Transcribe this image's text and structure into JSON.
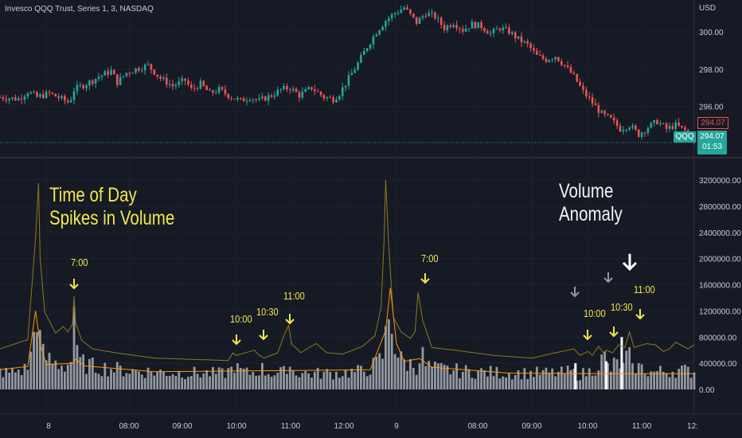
{
  "title": "Invesco QQQ Trust, Series 1, 3, NASDAQ",
  "currency": "USD",
  "price_axis": {
    "labels": [
      "300.00",
      "298.00",
      "296.00"
    ]
  },
  "volume_axis": {
    "labels": [
      "3200000.00",
      "2800000.00",
      "2400000.00",
      "2000000.00",
      "1600000.00",
      "1200000.00",
      "800000.00",
      "400000.00",
      "0.00"
    ]
  },
  "time_axis": {
    "labels": [
      "8",
      "08:00",
      "09:00",
      "10:00",
      "11:00",
      "12:00",
      "9",
      "08:00",
      "09:00",
      "10:00",
      "11:00",
      "12:"
    ]
  },
  "price_tags": {
    "last_price_red": "294.07",
    "symbol": "QQQ",
    "last_price": "294.07",
    "countdown": "01:53"
  },
  "annotations": {
    "headline_left_line1": "Time of Day",
    "headline_left_line2": "Spikes in Volume",
    "headline_right_line1": "Volume",
    "headline_right_line2": "Anomaly",
    "t700_a": "7:00",
    "t1000_a": "10:00",
    "t1030_a": "10:30",
    "t1100_a": "11:00",
    "t700_b": "7:00",
    "t1000_b": "10:00",
    "t1030_b": "10:30",
    "t1100_b": "11:00"
  },
  "colors": {
    "background": "#161a25",
    "up": "#26a69a",
    "down": "#ef5350",
    "volume_bar": "#9598a1",
    "volume_avg": "#ff9800",
    "volume_upper": "#8c7a1e",
    "annotation": "#f2e84b"
  },
  "chart_data": [
    {
      "type": "candlestick",
      "y_unit": "USD",
      "ylim": [
        293.3,
        301.7
      ],
      "close_path": [
        [
          0,
          296.5
        ],
        [
          12,
          296.4
        ],
        [
          18,
          296.8
        ],
        [
          24,
          296.5
        ],
        [
          32,
          296.7
        ],
        [
          40,
          296.4
        ],
        [
          45,
          296.2
        ],
        [
          48,
          296.9
        ],
        [
          58,
          297.3
        ],
        [
          64,
          297.6
        ],
        [
          72,
          297.9
        ],
        [
          76,
          297.3
        ],
        [
          82,
          297.8
        ],
        [
          88,
          298.0
        ],
        [
          96,
          298.2
        ],
        [
          104,
          297.5
        ],
        [
          112,
          297.1
        ],
        [
          120,
          297.4
        ],
        [
          124,
          296.9
        ],
        [
          130,
          297.2
        ],
        [
          136,
          296.7
        ],
        [
          142,
          296.9
        ],
        [
          150,
          296.5
        ],
        [
          156,
          296.3
        ],
        [
          162,
          296.5
        ],
        [
          168,
          296.3
        ],
        [
          176,
          296.6
        ],
        [
          182,
          296.9
        ],
        [
          188,
          297.0
        ],
        [
          194,
          296.6
        ],
        [
          202,
          297.0
        ],
        [
          210,
          296.5
        ],
        [
          216,
          296.4
        ],
        [
          220,
          296.7
        ],
        [
          226,
          297.5
        ],
        [
          232,
          298.3
        ],
        [
          238,
          299.2
        ],
        [
          244,
          300.0
        ],
        [
          250,
          300.6
        ],
        [
          256,
          301.0
        ],
        [
          262,
          301.3
        ],
        [
          266,
          300.9
        ],
        [
          270,
          300.5
        ],
        [
          276,
          301.0
        ],
        [
          282,
          300.8
        ],
        [
          288,
          300.2
        ],
        [
          294,
          300.5
        ],
        [
          300,
          300.1
        ],
        [
          306,
          300.4
        ],
        [
          312,
          300.3
        ],
        [
          318,
          299.9
        ],
        [
          324,
          300.2
        ],
        [
          330,
          300.0
        ],
        [
          336,
          299.6
        ],
        [
          342,
          299.3
        ],
        [
          348,
          298.7
        ],
        [
          354,
          298.5
        ],
        [
          360,
          298.7
        ],
        [
          366,
          298.2
        ],
        [
          372,
          297.6
        ],
        [
          378,
          296.8
        ],
        [
          384,
          296.2
        ],
        [
          390,
          295.6
        ],
        [
          396,
          295.3
        ],
        [
          402,
          294.8
        ],
        [
          408,
          295.0
        ],
        [
          414,
          294.5
        ],
        [
          420,
          294.9
        ],
        [
          426,
          295.2
        ],
        [
          432,
          294.8
        ],
        [
          438,
          295.0
        ],
        [
          444,
          294.7
        ],
        [
          449,
          294.3
        ],
        [
          450,
          294.07
        ]
      ],
      "last": 294.07
    },
    {
      "type": "bar",
      "y_unit": "shares",
      "ylim": [
        0,
        3400000
      ],
      "series": [],
      "volume_profile": [
        [
          0,
          300000
        ],
        [
          5,
          270000
        ],
        [
          10,
          300000
        ],
        [
          16,
          330000
        ],
        [
          19,
          420000
        ],
        [
          21,
          650000
        ],
        [
          23,
          1200000
        ],
        [
          25,
          1600000
        ],
        [
          26,
          800000
        ],
        [
          28,
          560000
        ],
        [
          32,
          480000
        ],
        [
          35,
          440000
        ],
        [
          38,
          420000
        ],
        [
          42,
          400000
        ],
        [
          45,
          420000
        ],
        [
          47,
          560000
        ],
        [
          48,
          1400000
        ],
        [
          49,
          620000
        ],
        [
          51,
          460000
        ],
        [
          55,
          420000
        ],
        [
          60,
          380000
        ],
        [
          70,
          350000
        ],
        [
          80,
          320000
        ],
        [
          90,
          300000
        ],
        [
          110,
          280000
        ],
        [
          130,
          270000
        ],
        [
          145,
          260000
        ],
        [
          150,
          330000
        ],
        [
          152,
          430000
        ],
        [
          154,
          330000
        ],
        [
          160,
          270000
        ],
        [
          166,
          290000
        ],
        [
          169,
          370000
        ],
        [
          171,
          300000
        ],
        [
          178,
          270000
        ],
        [
          184,
          280000
        ],
        [
          187,
          500000
        ],
        [
          189,
          300000
        ],
        [
          200,
          260000
        ],
        [
          220,
          270000
        ],
        [
          235,
          300000
        ],
        [
          240,
          360000
        ],
        [
          245,
          430000
        ],
        [
          248,
          560000
        ],
        [
          250,
          850000
        ],
        [
          252,
          1200000
        ],
        [
          253,
          1450000
        ],
        [
          255,
          900000
        ],
        [
          257,
          600000
        ],
        [
          260,
          480000
        ],
        [
          265,
          420000
        ],
        [
          271,
          390000
        ],
        [
          273,
          680000
        ],
        [
          275,
          400000
        ],
        [
          282,
          340000
        ],
        [
          300,
          300000
        ],
        [
          320,
          280000
        ],
        [
          340,
          270000
        ],
        [
          365,
          270000
        ],
        [
          370,
          300000
        ],
        [
          374,
          230000
        ],
        [
          382,
          290000
        ],
        [
          386,
          380000
        ],
        [
          392,
          520000
        ],
        [
          395,
          300000
        ],
        [
          398,
          400000
        ],
        [
          402,
          430000
        ],
        [
          405,
          310000
        ],
        [
          407,
          760000
        ],
        [
          409,
          280000
        ],
        [
          412,
          380000
        ],
        [
          418,
          330000
        ],
        [
          422,
          280000
        ],
        [
          430,
          300000
        ],
        [
          440,
          320000
        ],
        [
          450,
          290000
        ]
      ],
      "moving_average_path": [
        [
          0,
          300000
        ],
        [
          18,
          350000
        ],
        [
          23,
          1200000
        ],
        [
          26,
          700000
        ],
        [
          30,
          380000
        ],
        [
          47,
          400000
        ],
        [
          49,
          460000
        ],
        [
          55,
          360000
        ],
        [
          100,
          270000
        ],
        [
          240,
          300000
        ],
        [
          250,
          900000
        ],
        [
          253,
          1550000
        ],
        [
          257,
          700000
        ],
        [
          262,
          430000
        ],
        [
          272,
          470000
        ],
        [
          280,
          340000
        ],
        [
          330,
          250000
        ],
        [
          400,
          240000
        ],
        [
          450,
          240000
        ]
      ],
      "upper_band_path": [
        [
          0,
          620000
        ],
        [
          18,
          760000
        ],
        [
          23,
          2300000
        ],
        [
          25,
          3150000
        ],
        [
          26,
          2000000
        ],
        [
          29,
          1180000
        ],
        [
          36,
          860000
        ],
        [
          41,
          960000
        ],
        [
          44,
          880000
        ],
        [
          47,
          1000000
        ],
        [
          48,
          1420000
        ],
        [
          49,
          1020000
        ],
        [
          53,
          750000
        ],
        [
          60,
          620000
        ],
        [
          75,
          560000
        ],
        [
          100,
          480000
        ],
        [
          148,
          440000
        ],
        [
          151,
          560000
        ],
        [
          153,
          520000
        ],
        [
          165,
          600000
        ],
        [
          168,
          520000
        ],
        [
          171,
          480000
        ],
        [
          180,
          560000
        ],
        [
          184,
          820000
        ],
        [
          187,
          980000
        ],
        [
          189,
          700000
        ],
        [
          195,
          560000
        ],
        [
          199,
          620000
        ],
        [
          205,
          700000
        ],
        [
          212,
          560000
        ],
        [
          222,
          540000
        ],
        [
          235,
          660000
        ],
        [
          243,
          820000
        ],
        [
          247,
          1250000
        ],
        [
          249,
          2300000
        ],
        [
          250,
          3200000
        ],
        [
          252,
          2200000
        ],
        [
          255,
          1100000
        ],
        [
          260,
          880000
        ],
        [
          266,
          780000
        ],
        [
          269,
          880000
        ],
        [
          271,
          1480000
        ],
        [
          274,
          1050000
        ],
        [
          280,
          640000
        ],
        [
          295,
          600000
        ],
        [
          320,
          520000
        ],
        [
          345,
          480000
        ],
        [
          360,
          560000
        ],
        [
          372,
          620000
        ],
        [
          376,
          520000
        ],
        [
          381,
          580000
        ],
        [
          384,
          520000
        ],
        [
          388,
          660000
        ],
        [
          391,
          560000
        ],
        [
          393,
          600000
        ],
        [
          397,
          560000
        ],
        [
          401,
          680000
        ],
        [
          405,
          640000
        ],
        [
          408,
          880000
        ],
        [
          411,
          640000
        ],
        [
          419,
          700000
        ],
        [
          425,
          680000
        ],
        [
          430,
          580000
        ],
        [
          434,
          620000
        ],
        [
          438,
          720000
        ],
        [
          446,
          620000
        ],
        [
          450,
          680000
        ]
      ],
      "highlighted_bars": [
        {
          "x": 373,
          "value": 400000
        },
        {
          "x": 393,
          "value": 430000
        },
        {
          "x": 403,
          "value": 800000
        }
      ]
    }
  ]
}
